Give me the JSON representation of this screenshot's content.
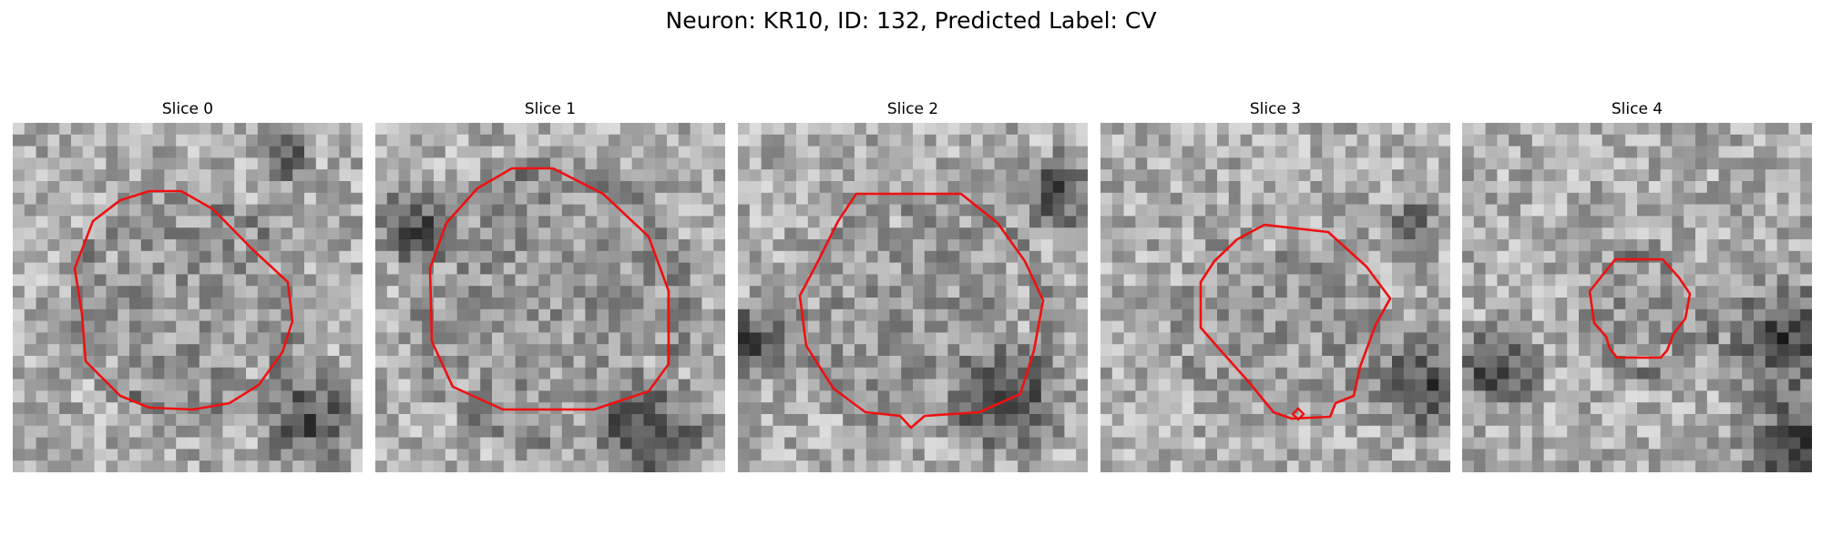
{
  "title": "Neuron: KR10, ID: 132, Predicted Label: CV",
  "panels": [
    {
      "title": "Slice 0"
    },
    {
      "title": "Slice 1"
    },
    {
      "title": "Slice 2"
    },
    {
      "title": "Slice 3"
    },
    {
      "title": "Slice 4"
    }
  ],
  "colors": {
    "contour": "#ee1111",
    "background": "#ffffff"
  }
}
